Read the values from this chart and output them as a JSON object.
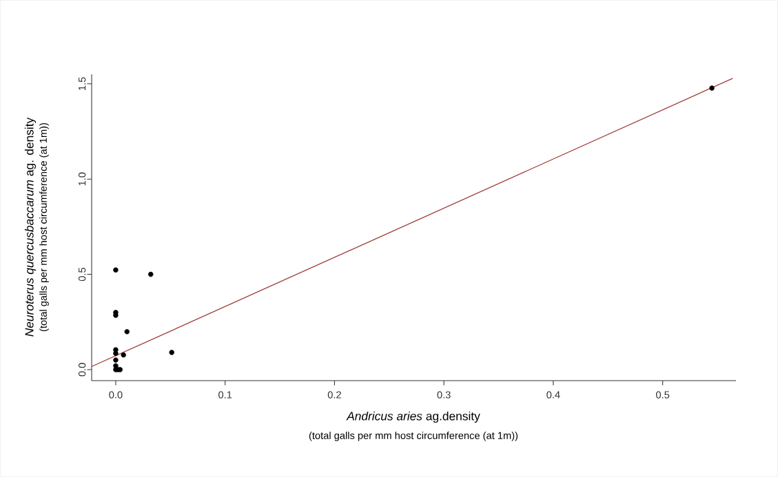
{
  "chart_data": {
    "type": "scatter",
    "xlabel": "*Andricus aries* ag.density",
    "ylabel": "*Neuroterus quercusbaccarum* ag. density",
    "annotations": [
      "(total galls per mm host circumference (at 1m))",
      "(total galls per mm host circumference (at 1m))"
    ],
    "xlim": [
      -0.022,
      0.567
    ],
    "ylim": [
      -0.058,
      1.55
    ],
    "xticks": [
      {
        "value": 0,
        "label": "0.0"
      },
      0.1,
      0.2,
      0.3,
      0.4,
      0.5
    ],
    "yticks": [
      {
        "value": 0,
        "label": "0.0"
      },
      0.5,
      {
        "value": 1,
        "label": "1.0"
      },
      1.5
    ],
    "grid": false,
    "series": [
      {
        "color": "#000000",
        "marker": "circle",
        "x": [
          0,
          0.032,
          0,
          0,
          0.0103,
          0.0512,
          0.0071,
          0,
          0,
          0,
          0,
          0.002,
          0.004,
          0,
          0.545
        ],
        "values": [
          0.523,
          0.5,
          0.3,
          0.285,
          0.199,
          0.09,
          0.077,
          0.104,
          0.085,
          0.05,
          0.02,
          0,
          0,
          0,
          1.478
        ]
      },
      {
        "type": "line",
        "color": "#a0413c",
        "marker": "none",
        "x": [
          -0.022,
          0.564
        ],
        "values": [
          0.016,
          1.529
        ]
      }
    ]
  }
}
